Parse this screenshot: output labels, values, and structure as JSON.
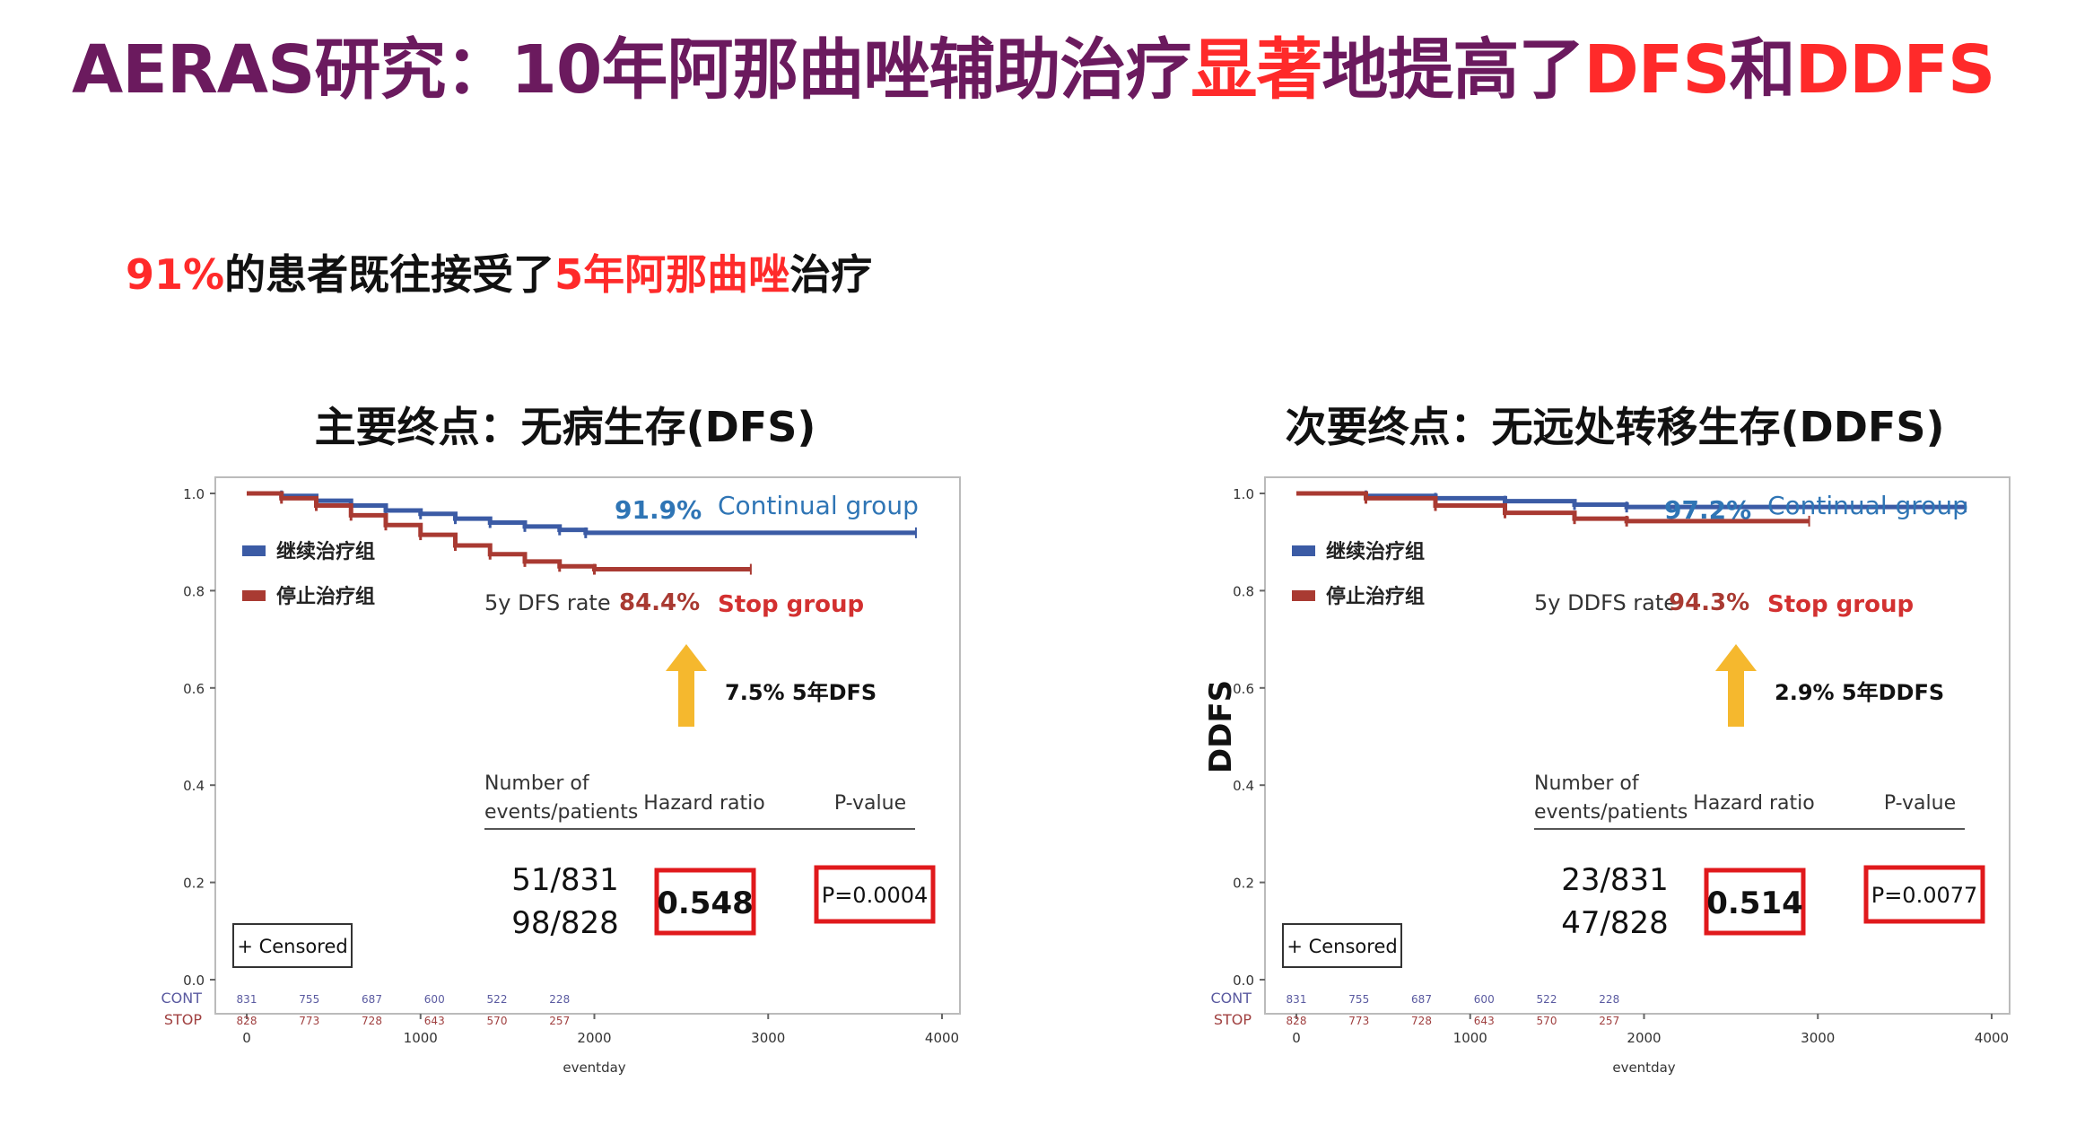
{
  "header": {
    "title_part1": "AERAS研究：10年阿那曲唑辅助治疗",
    "title_red1": "显著",
    "title_part2": "地提高了",
    "title_red2": "DFS",
    "title_part3": "和",
    "title_red3": "DDFS"
  },
  "subtitle": {
    "red1": "91%",
    "text1": "的患者既往接受了",
    "red2": "5年阿那曲唑",
    "text2": "治疗"
  },
  "colors": {
    "title": "#6b1a5e",
    "accent_red": "#ff2a2a",
    "continual_blue": "#3b5ba5",
    "stop_red": "#a93a32",
    "arrow_yellow": "#f5b82e",
    "box_red": "#e0191c",
    "label_blue": "#2f75b5"
  },
  "chart_data": [
    {
      "type": "line",
      "title": "主要终点：无病生存(DFS)",
      "ylabel": "",
      "xlabel": "eventday",
      "ylim": [
        0,
        1.0
      ],
      "xlim": [
        0,
        4000
      ],
      "yticks": [
        "1.0",
        "0.8",
        "0.6",
        "0.4",
        "0.2",
        "0.0"
      ],
      "xticks": [
        "0",
        "1000",
        "2000",
        "3000",
        "4000"
      ],
      "legend": [
        "继续治疗组",
        "停止治疗组"
      ],
      "series": [
        {
          "name": "继续治疗组",
          "x": [
            0,
            200,
            400,
            600,
            800,
            1000,
            1200,
            1400,
            1600,
            1800,
            1950,
            3850
          ],
          "values": [
            1.0,
            0.995,
            0.985,
            0.975,
            0.965,
            0.958,
            0.948,
            0.94,
            0.932,
            0.925,
            0.919,
            0.919
          ]
        },
        {
          "name": "停止治疗组",
          "x": [
            0,
            200,
            400,
            600,
            800,
            1000,
            1200,
            1400,
            1600,
            1800,
            2000,
            2900
          ],
          "values": [
            1.0,
            0.99,
            0.975,
            0.955,
            0.935,
            0.915,
            0.893,
            0.875,
            0.86,
            0.85,
            0.844,
            0.844
          ]
        }
      ],
      "annot": {
        "cont_rate": "91.9%",
        "cont_label": "Continual group",
        "rate_label": "5y DFS rate",
        "stop_rate": "84.4%",
        "stop_label": "Stop group",
        "arrow_text": "7.5% 5年DFS",
        "col1": "Number of",
        "col1b": "events/patients",
        "col2": "Hazard ratio",
        "col3": "P-value",
        "events1": "51/831",
        "events2": "98/828",
        "hr": "0.548",
        "p": "P=0.0004",
        "censored": "+ Censored"
      },
      "risk": {
        "cont_label": "CONT",
        "stop_label": "STOP",
        "cont": [
          "831",
          "755",
          "687",
          "600",
          "522",
          "228"
        ],
        "stop": [
          "828",
          "773",
          "728",
          "643",
          "570",
          "257"
        ]
      }
    },
    {
      "type": "line",
      "title": "次要终点：无远处转移生存(DDFS)",
      "ylabel": "DDFS",
      "xlabel": "eventday",
      "ylim": [
        0,
        1.0
      ],
      "xlim": [
        0,
        4000
      ],
      "yticks": [
        "1.0",
        "0.8",
        "0.6",
        "0.4",
        "0.2",
        "0.0"
      ],
      "xticks": [
        "0",
        "1000",
        "2000",
        "3000",
        "4000"
      ],
      "legend": [
        "继续治疗组",
        "停止治疗组"
      ],
      "series": [
        {
          "name": "继续治疗组",
          "x": [
            0,
            400,
            800,
            1200,
            1600,
            1900,
            3850
          ],
          "values": [
            1.0,
            0.995,
            0.99,
            0.984,
            0.977,
            0.972,
            0.972
          ]
        },
        {
          "name": "停止治疗组",
          "x": [
            0,
            400,
            800,
            1200,
            1600,
            1900,
            2950
          ],
          "values": [
            1.0,
            0.99,
            0.975,
            0.96,
            0.948,
            0.943,
            0.943
          ]
        }
      ],
      "annot": {
        "cont_rate": "97.2%",
        "cont_label": "Continual group",
        "rate_label": "5y DDFS rate",
        "stop_rate": "94.3%",
        "stop_label": "Stop group",
        "arrow_text": "2.9% 5年DDFS",
        "col1": "Number of",
        "col1b": "events/patients",
        "col2": "Hazard ratio",
        "col3": "P-value",
        "events1": "23/831",
        "events2": "47/828",
        "hr": "0.514",
        "p": "P=0.0077",
        "censored": "+ Censored"
      },
      "risk": {
        "cont_label": "CONT",
        "stop_label": "STOP",
        "cont": [
          "831",
          "755",
          "687",
          "600",
          "522",
          "228"
        ],
        "stop": [
          "828",
          "773",
          "728",
          "643",
          "570",
          "257"
        ]
      }
    }
  ]
}
